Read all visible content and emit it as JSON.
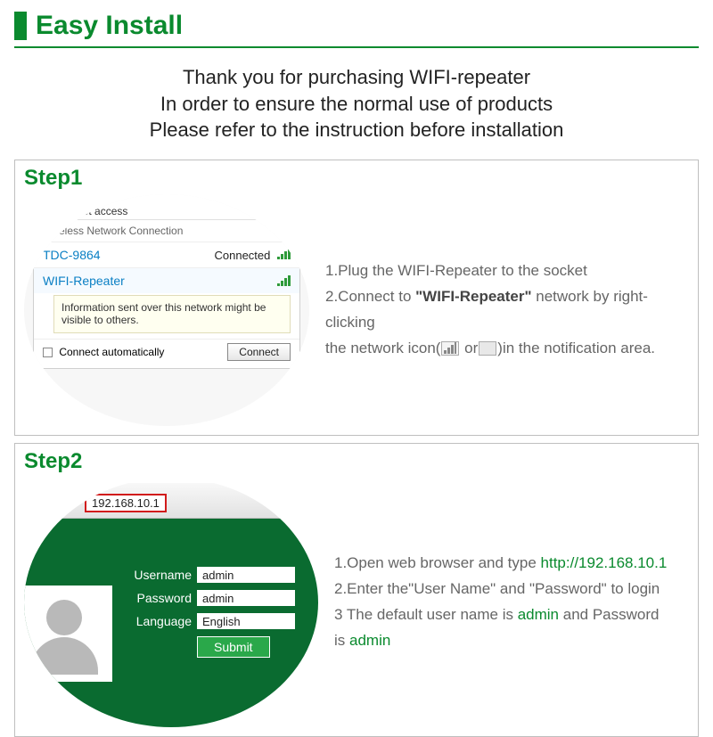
{
  "colors": {
    "brand_green": "#0a8a2e",
    "panel_green": "#0a6b30",
    "border_gray": "#bfbfbf",
    "text_gray": "#666666",
    "url_border_red": "#d11b1b"
  },
  "header": {
    "title": "Easy Install"
  },
  "intro": {
    "line1": "Thank you for purchasing WIFI-repeater",
    "line2": "In order to ensure the normal use of products",
    "line3": "Please refer to the instruction before installation"
  },
  "step1": {
    "label": "Step1",
    "popup": {
      "current_ssid": "TDC-9864",
      "current_status": "Internet access",
      "section_title": "Wireless Network Connection",
      "connected_ssid": "TDC-9864",
      "connected_label": "Connected",
      "selected_ssid": "WIFI-Repeater",
      "warning": "Information sent over this network might be visible to others.",
      "auto_label": "Connect automatically",
      "connect_btn": "Connect"
    },
    "instr": {
      "i1": "1.Plug the WIFI-Repeater to the socket",
      "i2_a": "2.Connect to ",
      "i2_bold": "\"WIFI-Repeater\"",
      "i2_b": " network by right-clicking",
      "i3_a": "the network icon(",
      "i3_or": " or",
      "i3_b": ")in the notification area."
    }
  },
  "step2": {
    "label": "Step2",
    "url": "192.168.10.1",
    "form": {
      "username_label": "Username",
      "username_value": "admin",
      "password_label": "Password",
      "password_value": "admin",
      "language_label": "Language",
      "language_value": "English",
      "submit": "Submit"
    },
    "instr": {
      "i1_a": "1.Open web browser and type ",
      "i1_url": "http://192.168.10.1",
      "i2": "2.Enter the\"User Name\" and \"Password\" to login",
      "i3_a": "3 The default user name is ",
      "i3_admin1": "admin",
      "i3_b": " and Password",
      "i4_a": "is ",
      "i4_admin2": "admin"
    }
  }
}
